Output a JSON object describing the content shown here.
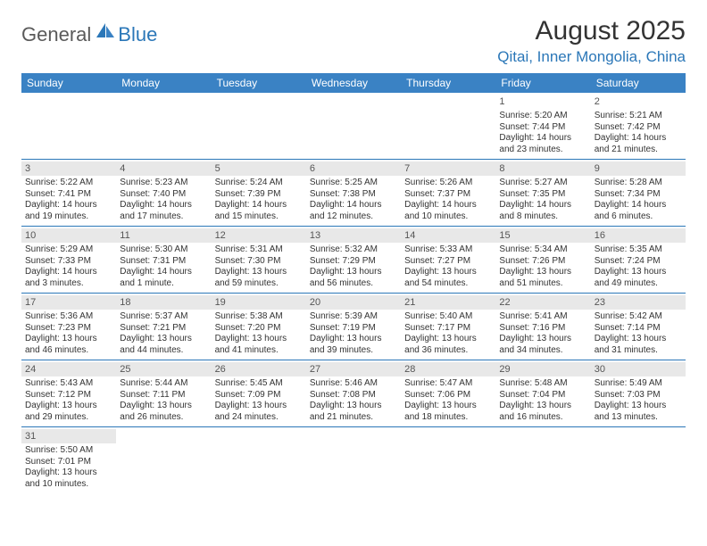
{
  "logo": {
    "general": "General",
    "blue": "Blue"
  },
  "title": "August 2025",
  "location": "Qitai, Inner Mongolia, China",
  "colors": {
    "header_bg": "#3a82c4",
    "accent": "#2b77b8",
    "daynum_bg": "#e8e8e8",
    "text": "#333333"
  },
  "day_names": [
    "Sunday",
    "Monday",
    "Tuesday",
    "Wednesday",
    "Thursday",
    "Friday",
    "Saturday"
  ],
  "weeks": [
    [
      {
        "n": "",
        "sr": "",
        "ss": "",
        "dl": ""
      },
      {
        "n": "",
        "sr": "",
        "ss": "",
        "dl": ""
      },
      {
        "n": "",
        "sr": "",
        "ss": "",
        "dl": ""
      },
      {
        "n": "",
        "sr": "",
        "ss": "",
        "dl": ""
      },
      {
        "n": "",
        "sr": "",
        "ss": "",
        "dl": ""
      },
      {
        "n": "1",
        "sr": "Sunrise: 5:20 AM",
        "ss": "Sunset: 7:44 PM",
        "dl": "Daylight: 14 hours and 23 minutes."
      },
      {
        "n": "2",
        "sr": "Sunrise: 5:21 AM",
        "ss": "Sunset: 7:42 PM",
        "dl": "Daylight: 14 hours and 21 minutes."
      }
    ],
    [
      {
        "n": "3",
        "sr": "Sunrise: 5:22 AM",
        "ss": "Sunset: 7:41 PM",
        "dl": "Daylight: 14 hours and 19 minutes."
      },
      {
        "n": "4",
        "sr": "Sunrise: 5:23 AM",
        "ss": "Sunset: 7:40 PM",
        "dl": "Daylight: 14 hours and 17 minutes."
      },
      {
        "n": "5",
        "sr": "Sunrise: 5:24 AM",
        "ss": "Sunset: 7:39 PM",
        "dl": "Daylight: 14 hours and 15 minutes."
      },
      {
        "n": "6",
        "sr": "Sunrise: 5:25 AM",
        "ss": "Sunset: 7:38 PM",
        "dl": "Daylight: 14 hours and 12 minutes."
      },
      {
        "n": "7",
        "sr": "Sunrise: 5:26 AM",
        "ss": "Sunset: 7:37 PM",
        "dl": "Daylight: 14 hours and 10 minutes."
      },
      {
        "n": "8",
        "sr": "Sunrise: 5:27 AM",
        "ss": "Sunset: 7:35 PM",
        "dl": "Daylight: 14 hours and 8 minutes."
      },
      {
        "n": "9",
        "sr": "Sunrise: 5:28 AM",
        "ss": "Sunset: 7:34 PM",
        "dl": "Daylight: 14 hours and 6 minutes."
      }
    ],
    [
      {
        "n": "10",
        "sr": "Sunrise: 5:29 AM",
        "ss": "Sunset: 7:33 PM",
        "dl": "Daylight: 14 hours and 3 minutes."
      },
      {
        "n": "11",
        "sr": "Sunrise: 5:30 AM",
        "ss": "Sunset: 7:31 PM",
        "dl": "Daylight: 14 hours and 1 minute."
      },
      {
        "n": "12",
        "sr": "Sunrise: 5:31 AM",
        "ss": "Sunset: 7:30 PM",
        "dl": "Daylight: 13 hours and 59 minutes."
      },
      {
        "n": "13",
        "sr": "Sunrise: 5:32 AM",
        "ss": "Sunset: 7:29 PM",
        "dl": "Daylight: 13 hours and 56 minutes."
      },
      {
        "n": "14",
        "sr": "Sunrise: 5:33 AM",
        "ss": "Sunset: 7:27 PM",
        "dl": "Daylight: 13 hours and 54 minutes."
      },
      {
        "n": "15",
        "sr": "Sunrise: 5:34 AM",
        "ss": "Sunset: 7:26 PM",
        "dl": "Daylight: 13 hours and 51 minutes."
      },
      {
        "n": "16",
        "sr": "Sunrise: 5:35 AM",
        "ss": "Sunset: 7:24 PM",
        "dl": "Daylight: 13 hours and 49 minutes."
      }
    ],
    [
      {
        "n": "17",
        "sr": "Sunrise: 5:36 AM",
        "ss": "Sunset: 7:23 PM",
        "dl": "Daylight: 13 hours and 46 minutes."
      },
      {
        "n": "18",
        "sr": "Sunrise: 5:37 AM",
        "ss": "Sunset: 7:21 PM",
        "dl": "Daylight: 13 hours and 44 minutes."
      },
      {
        "n": "19",
        "sr": "Sunrise: 5:38 AM",
        "ss": "Sunset: 7:20 PM",
        "dl": "Daylight: 13 hours and 41 minutes."
      },
      {
        "n": "20",
        "sr": "Sunrise: 5:39 AM",
        "ss": "Sunset: 7:19 PM",
        "dl": "Daylight: 13 hours and 39 minutes."
      },
      {
        "n": "21",
        "sr": "Sunrise: 5:40 AM",
        "ss": "Sunset: 7:17 PM",
        "dl": "Daylight: 13 hours and 36 minutes."
      },
      {
        "n": "22",
        "sr": "Sunrise: 5:41 AM",
        "ss": "Sunset: 7:16 PM",
        "dl": "Daylight: 13 hours and 34 minutes."
      },
      {
        "n": "23",
        "sr": "Sunrise: 5:42 AM",
        "ss": "Sunset: 7:14 PM",
        "dl": "Daylight: 13 hours and 31 minutes."
      }
    ],
    [
      {
        "n": "24",
        "sr": "Sunrise: 5:43 AM",
        "ss": "Sunset: 7:12 PM",
        "dl": "Daylight: 13 hours and 29 minutes."
      },
      {
        "n": "25",
        "sr": "Sunrise: 5:44 AM",
        "ss": "Sunset: 7:11 PM",
        "dl": "Daylight: 13 hours and 26 minutes."
      },
      {
        "n": "26",
        "sr": "Sunrise: 5:45 AM",
        "ss": "Sunset: 7:09 PM",
        "dl": "Daylight: 13 hours and 24 minutes."
      },
      {
        "n": "27",
        "sr": "Sunrise: 5:46 AM",
        "ss": "Sunset: 7:08 PM",
        "dl": "Daylight: 13 hours and 21 minutes."
      },
      {
        "n": "28",
        "sr": "Sunrise: 5:47 AM",
        "ss": "Sunset: 7:06 PM",
        "dl": "Daylight: 13 hours and 18 minutes."
      },
      {
        "n": "29",
        "sr": "Sunrise: 5:48 AM",
        "ss": "Sunset: 7:04 PM",
        "dl": "Daylight: 13 hours and 16 minutes."
      },
      {
        "n": "30",
        "sr": "Sunrise: 5:49 AM",
        "ss": "Sunset: 7:03 PM",
        "dl": "Daylight: 13 hours and 13 minutes."
      }
    ],
    [
      {
        "n": "31",
        "sr": "Sunrise: 5:50 AM",
        "ss": "Sunset: 7:01 PM",
        "dl": "Daylight: 13 hours and 10 minutes."
      },
      {
        "n": "",
        "sr": "",
        "ss": "",
        "dl": ""
      },
      {
        "n": "",
        "sr": "",
        "ss": "",
        "dl": ""
      },
      {
        "n": "",
        "sr": "",
        "ss": "",
        "dl": ""
      },
      {
        "n": "",
        "sr": "",
        "ss": "",
        "dl": ""
      },
      {
        "n": "",
        "sr": "",
        "ss": "",
        "dl": ""
      },
      {
        "n": "",
        "sr": "",
        "ss": "",
        "dl": ""
      }
    ]
  ]
}
